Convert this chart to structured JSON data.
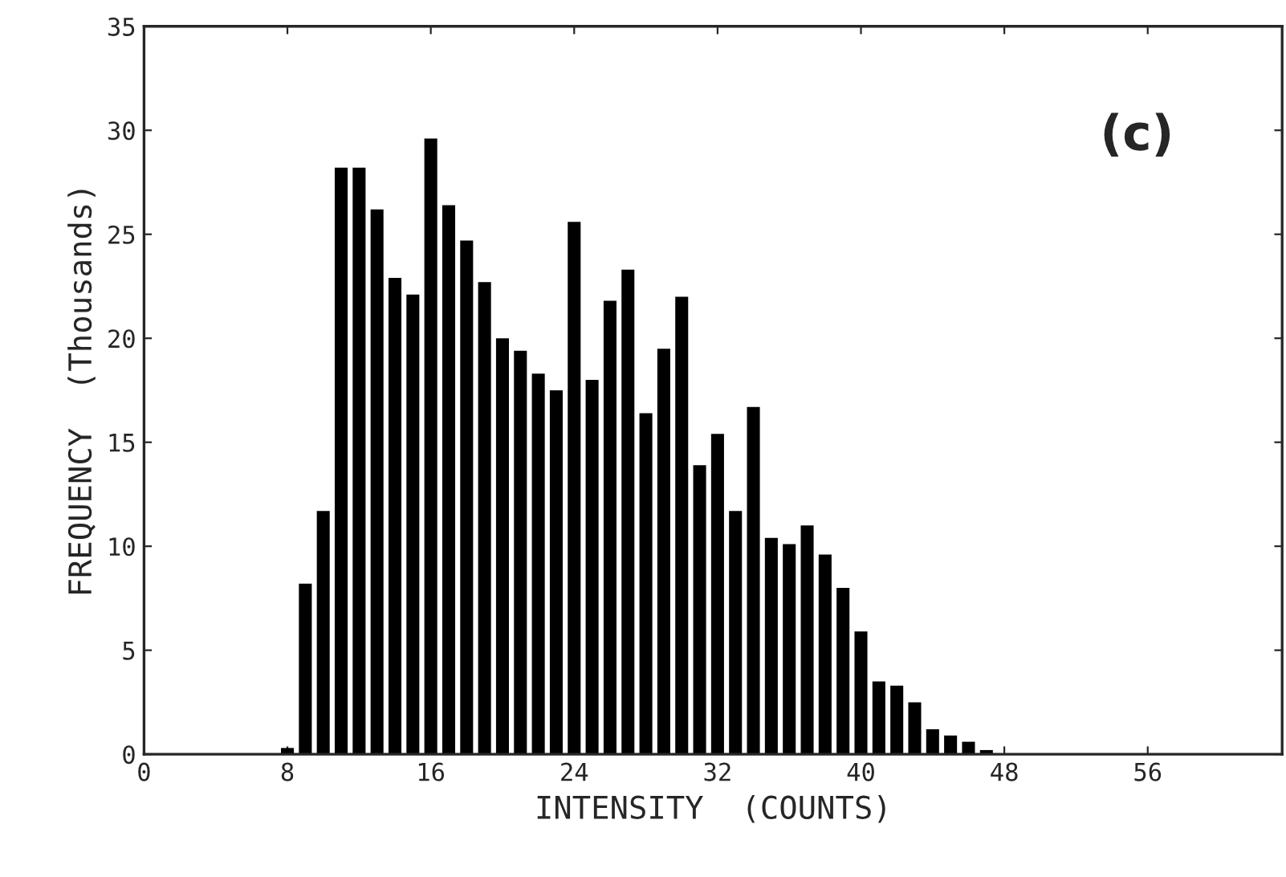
{
  "chart_data": {
    "type": "histogram",
    "xlabel": "INTENSITY  (COUNTS)",
    "ylabel": "FREQUENCY  (Thousands)",
    "annotations": [
      "(c)"
    ],
    "bins": [
      7.5,
      8.5,
      9.5,
      10.5,
      11.5,
      12.5,
      13.5,
      14.5,
      15.5,
      16.5,
      17.5,
      18.5,
      19.5,
      20.5,
      21.5,
      22.5,
      23.5,
      24.5,
      25.5,
      26.5,
      27.5,
      28.5,
      29.5,
      30.5,
      31.5,
      32.5,
      33.5,
      34.5,
      35.5,
      36.5,
      37.5,
      38.5,
      39.5,
      40.5,
      41.5,
      42.5,
      43.5,
      44.5,
      45.5,
      46.5,
      47.5,
      48.5
    ],
    "values": [
      0.3,
      8.2,
      11.7,
      28.2,
      28.2,
      26.2,
      22.9,
      22.1,
      29.6,
      26.4,
      24.7,
      22.7,
      20.0,
      19.4,
      18.3,
      17.5,
      25.6,
      18.0,
      21.8,
      23.3,
      16.4,
      19.5,
      22.0,
      13.9,
      15.4,
      11.7,
      16.7,
      10.4,
      10.1,
      11.0,
      9.6,
      8.0,
      5.9,
      3.5,
      3.3,
      2.5,
      1.2,
      0.9,
      0.6,
      0.2,
      null
    ],
    "color": "#000000",
    "xlim": [
      0,
      63.5
    ],
    "xticks": [
      0,
      8,
      16,
      24,
      32,
      40,
      48,
      56
    ],
    "ylim": [
      0,
      35
    ],
    "yticks": [
      0,
      5,
      10,
      15,
      20,
      25,
      30,
      35
    ],
    "grid": false
  }
}
